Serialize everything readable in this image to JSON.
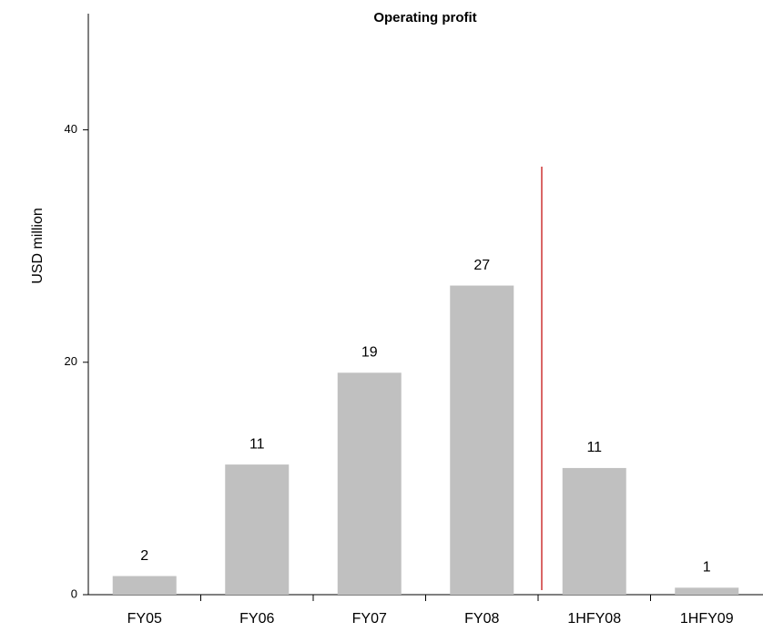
{
  "chart_data": {
    "type": "bar",
    "title": "Operating profit",
    "y_label": "USD million",
    "categories": [
      "FY05",
      "FY06",
      "FY07",
      "FY08",
      "1HFY08",
      "1HFY09"
    ],
    "values": [
      1.6,
      11.2,
      19.1,
      26.6,
      10.9,
      0.6
    ],
    "value_labels": [
      "2",
      "11",
      "19",
      "27",
      "11",
      "1"
    ],
    "color": "#c0c0c0",
    "ylim": [
      0,
      50
    ],
    "yticks": [
      0,
      20,
      40
    ],
    "grid": false
  }
}
